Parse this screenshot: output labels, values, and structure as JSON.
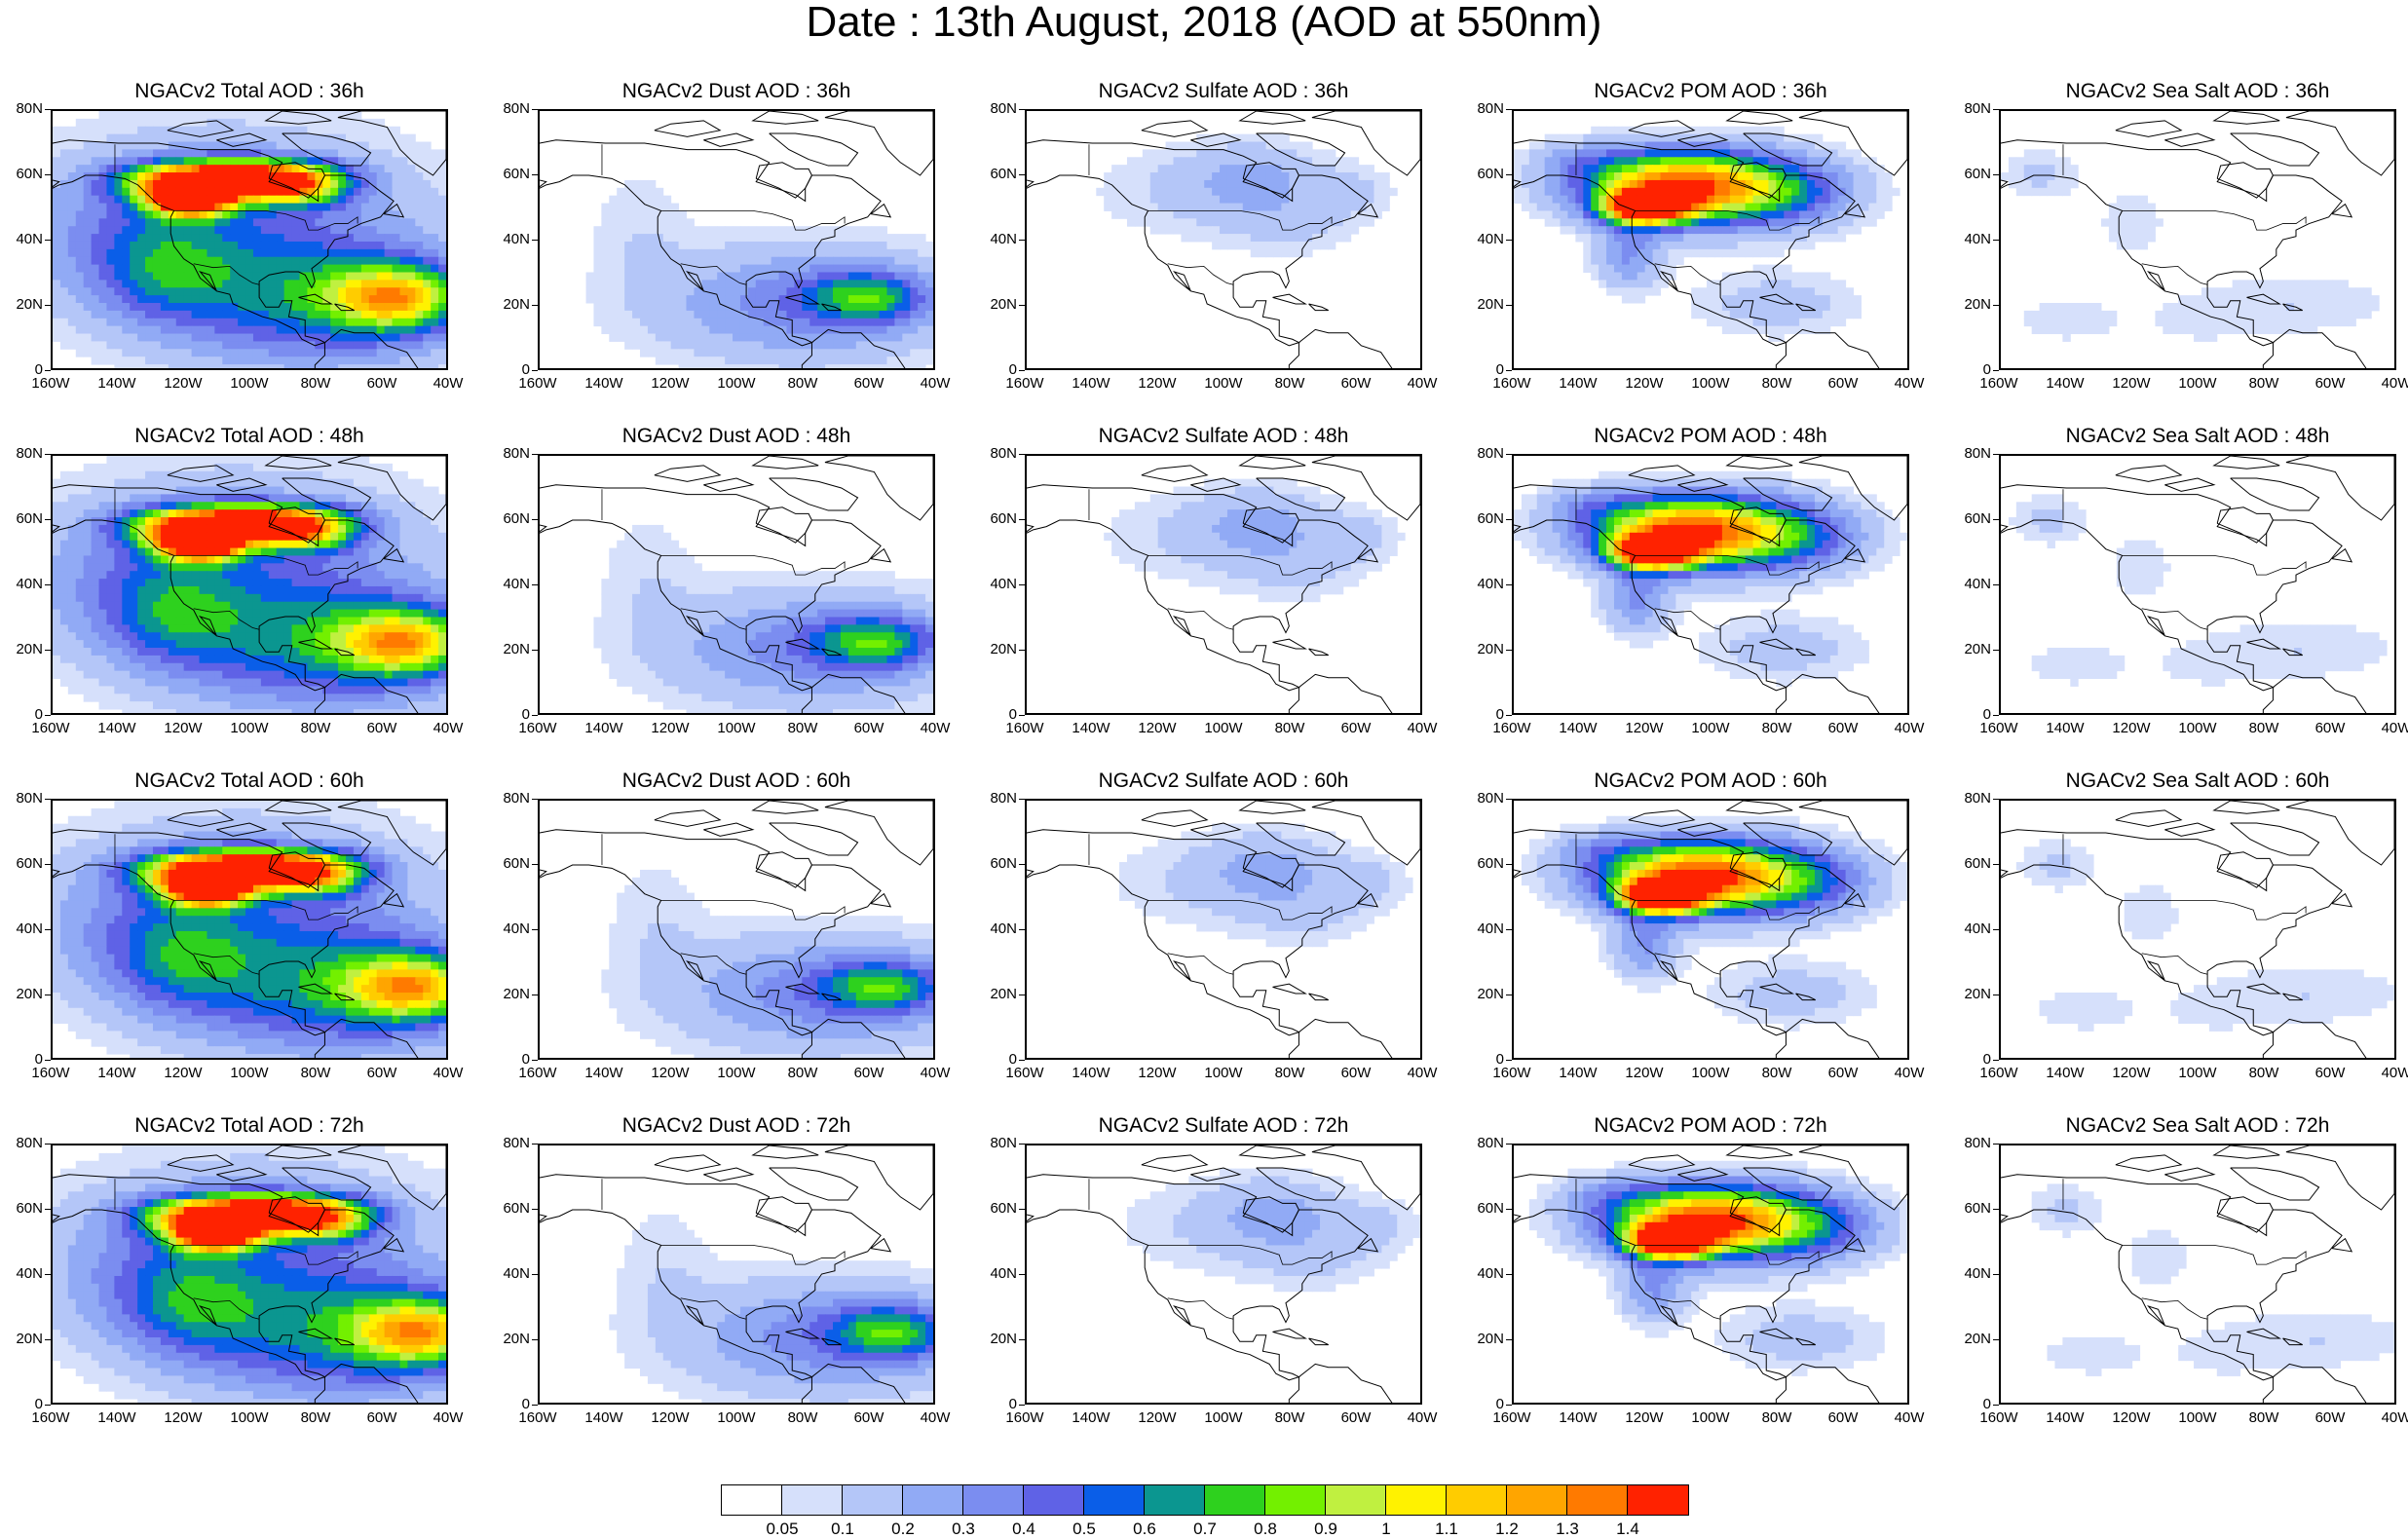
{
  "title": "Date : 13th August, 2018 (AOD at 550nm)",
  "columns": [
    {
      "label": "NGACv2 Total AOD",
      "field": "total"
    },
    {
      "label": "NGACv2 Dust AOD",
      "field": "dust"
    },
    {
      "label": "NGACv2 Sulfate AOD",
      "field": "sulfate"
    },
    {
      "label": "NGACv2 POM AOD",
      "field": "pom"
    },
    {
      "label": "NGACv2 Sea Salt AOD",
      "field": "seasalt"
    }
  ],
  "panel_titles": [
    [
      "NGACv2 Total AOD : 36h",
      "NGACv2 Dust AOD : 36h",
      "NGACv2 Sulfate AOD : 36h",
      "NGACv2 POM AOD : 36h",
      "NGACv2 Sea Salt AOD : 36h"
    ],
    [
      "NGACv2 Total AOD : 48h",
      "NGACv2 Dust AOD : 48h",
      "NGACv2 Sulfate AOD : 48h",
      "NGACv2 POM AOD : 48h",
      "NGACv2 Sea Salt AOD : 48h"
    ],
    [
      "NGACv2 Total AOD : 60h",
      "NGACv2 Dust AOD : 60h",
      "NGACv2 Sulfate AOD : 60h",
      "NGACv2 POM AOD : 60h",
      "NGACv2 Sea Salt AOD : 60h"
    ],
    [
      "NGACv2 Total AOD : 72h",
      "NGACv2 Dust AOD : 72h",
      "NGACv2 Sulfate AOD : 72h",
      "NGACv2 POM AOD : 72h",
      "NGACv2 Sea Salt  AOD : 72h"
    ]
  ],
  "forecast_hours": [
    "36h",
    "48h",
    "60h",
    "72h"
  ],
  "y_ticks": [
    "80N",
    "60N",
    "40N",
    "20N",
    "0"
  ],
  "x_ticks": [
    "160W",
    "140W",
    "120W",
    "100W",
    "80W",
    "60W",
    "40W"
  ],
  "colorbar": {
    "colors": [
      "#ffffff",
      "#d6e0fb",
      "#b4c6f8",
      "#91aaf5",
      "#7b8df0",
      "#5f62e6",
      "#0a5ee8",
      "#0b9690",
      "#2ed11e",
      "#73f000",
      "#c0f040",
      "#fff200",
      "#ffcc00",
      "#ffa500",
      "#ff7a00",
      "#ff2200"
    ],
    "labels": [
      "0.05",
      "0.1",
      "0.2",
      "0.3",
      "0.4",
      "0.5",
      "0.6",
      "0.7",
      "0.8",
      "0.9",
      "1",
      "1.1",
      "1.2",
      "1.3",
      "1.4"
    ]
  }
}
